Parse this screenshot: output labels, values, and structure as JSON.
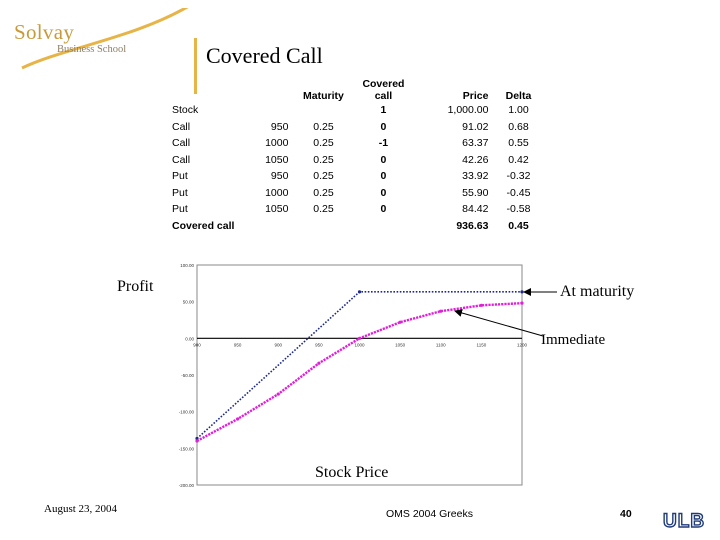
{
  "header": {
    "logo_main": "Solvay",
    "logo_sub": "Business School",
    "title": "Covered Call"
  },
  "table": {
    "columns": [
      "",
      "",
      "Maturity",
      "Covered call",
      "Price",
      "Delta"
    ],
    "rows": [
      [
        "Stock",
        "",
        "",
        "1",
        "1,000.00",
        "1.00"
      ],
      [
        "Call",
        "950",
        "0.25",
        "0",
        "91.02",
        "0.68"
      ],
      [
        "Call",
        "1000",
        "0.25",
        "-1",
        "63.37",
        "0.55"
      ],
      [
        "Call",
        "1050",
        "0.25",
        "0",
        "42.26",
        "0.42"
      ],
      [
        "Put",
        "950",
        "0.25",
        "0",
        "33.92",
        "-0.32"
      ],
      [
        "Put",
        "1000",
        "0.25",
        "0",
        "55.90",
        "-0.45"
      ],
      [
        "Put",
        "1050",
        "0.25",
        "0",
        "84.42",
        "-0.58"
      ]
    ],
    "total": [
      "Covered call",
      "",
      "",
      "",
      "936.63",
      "0.45"
    ]
  },
  "chart_data": {
    "type": "line",
    "x_tick_labels": [
      "900",
      "950",
      "900",
      "950",
      "1000",
      "1050",
      "1100",
      "1150",
      "1200"
    ],
    "y_tick_labels": [
      "100.00",
      "50.00",
      "0.00",
      "-50.00",
      "-100.00",
      "-150.00",
      "-200.00"
    ],
    "xlim": [
      800,
      1200
    ],
    "ylim": [
      -200,
      100
    ],
    "grid": false,
    "series": [
      {
        "name": "At maturity",
        "color": "#1e2a8a",
        "x": [
          800,
          1000,
          1200
        ],
        "y": [
          -136.63,
          63.37,
          63.37
        ]
      },
      {
        "name": "Immediate",
        "color": "#e020d8",
        "x": [
          800,
          850,
          900,
          950,
          1000,
          1050,
          1100,
          1150,
          1200
        ],
        "y": [
          -140,
          -110,
          -76,
          -34,
          0,
          22,
          37,
          45,
          48
        ]
      }
    ],
    "annotations": {
      "y_axis_label": "Profit",
      "x_axis_label": "Stock Price",
      "at_maturity": "At maturity",
      "immediate": "Immediate"
    }
  },
  "footer": {
    "date": "August 23, 2004",
    "center": "OMS 2004 Greeks",
    "page": "40",
    "logo": "ULB"
  }
}
